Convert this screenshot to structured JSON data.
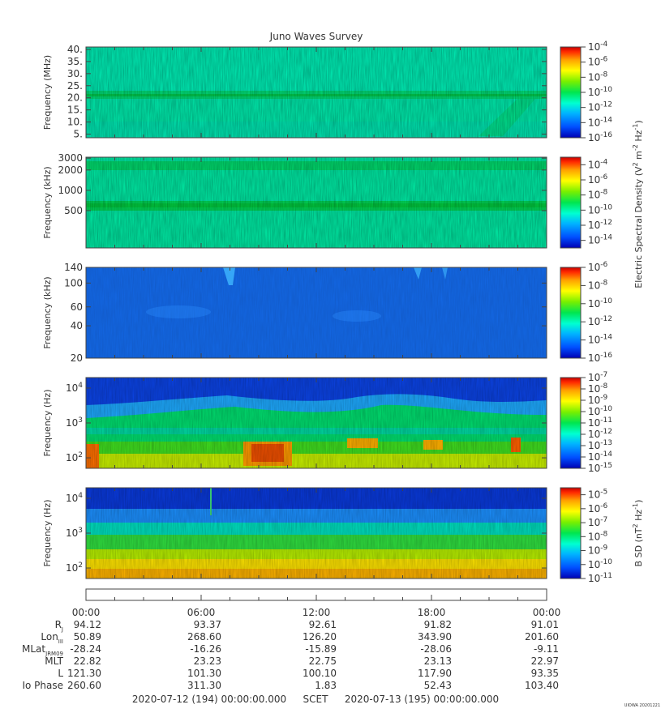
{
  "title": "Juno Waves Survey",
  "chart_data": [
    {
      "type": "heatmap",
      "ylabel": "Frequency (MHz)",
      "yticks": [
        "40.",
        "35.",
        "30.",
        "25.",
        "20.",
        "15.",
        "10.",
        "5."
      ],
      "ytick_values": [
        40,
        35,
        30,
        25,
        20,
        15,
        10,
        5
      ],
      "ylim": [
        3.5,
        41
      ],
      "yscale": "linear",
      "colorbar": {
        "min_exp": -16,
        "max_exp": -4,
        "tick_exps": [
          -4,
          -6,
          -8,
          -10,
          -12,
          -14,
          -16
        ]
      },
      "features": [
        {
          "kind": "band",
          "center": 21,
          "level": -11
        }
      ]
    },
    {
      "type": "heatmap",
      "ylabel": "Frequency (kHz)",
      "yticks": [
        "3000",
        "2000",
        "1000",
        "500"
      ],
      "ytick_values": [
        3000,
        2000,
        1000,
        500
      ],
      "ylim": [
        140,
        3100
      ],
      "yscale": "log",
      "colorbar": {
        "min_exp": -15,
        "max_exp": -3,
        "tick_exps": [
          -4,
          -6,
          -8,
          -10,
          -12,
          -14
        ]
      },
      "features": [
        {
          "kind": "band",
          "center": 2200,
          "level": -11
        },
        {
          "kind": "band",
          "center": 560,
          "level": -10
        }
      ]
    },
    {
      "type": "heatmap",
      "ylabel": "Frequency (kHz)",
      "yticks": [
        "140",
        "100",
        "60",
        "40",
        "20"
      ],
      "ytick_values": [
        140,
        100,
        60,
        40,
        20
      ],
      "ylim": [
        20,
        140
      ],
      "yscale": "log",
      "colorbar": {
        "min_exp": -16,
        "max_exp": -6,
        "tick_exps": [
          -6,
          -8,
          -10,
          -12,
          -14,
          -16
        ]
      }
    },
    {
      "type": "heatmap",
      "ylabel": "Frequency (Hz)",
      "yticks": [
        "10^4",
        "10^3",
        "10^2"
      ],
      "ytick_values": [
        10000,
        1000,
        100
      ],
      "ylim": [
        50,
        20000
      ],
      "yscale": "log",
      "colorbar": {
        "min_exp": -15,
        "max_exp": -7,
        "tick_exps": [
          -7,
          -8,
          -9,
          -10,
          -11,
          -12,
          -13,
          -14,
          -15
        ]
      }
    },
    {
      "type": "heatmap",
      "ylabel": "Frequency (Hz)",
      "yticks": [
        "10^4",
        "10^3",
        "10^2"
      ],
      "ytick_values": [
        10000,
        1000,
        100
      ],
      "ylim": [
        50,
        20000
      ],
      "yscale": "log",
      "colorbar": {
        "min_exp": -11,
        "max_exp": -4.5,
        "tick_exps": [
          -5,
          -6,
          -7,
          -8,
          -9,
          -10,
          -11
        ]
      }
    }
  ],
  "colorbar_label_electric": "Electric Spectral Density (V^2 m^-2 Hz^-1)",
  "colorbar_label_magnetic": "B SD (nT^2 Hz^-1)",
  "time_ticks": [
    "00:00",
    "06:00",
    "12:00",
    "18:00",
    "00:00"
  ],
  "ephemeris": {
    "labels": [
      "R",
      "Lon",
      "MLat",
      "MLT",
      "L",
      "Io Phase"
    ],
    "rows": [
      [
        "94.12",
        "93.37",
        "92.61",
        "91.82",
        "91.01"
      ],
      [
        "50.89",
        "268.60",
        "126.20",
        "343.90",
        "201.60"
      ],
      [
        "-28.24",
        "-16.26",
        "-15.89",
        "-28.06",
        "-9.11"
      ],
      [
        "22.82",
        "23.23",
        "22.75",
        "23.13",
        "22.97"
      ],
      [
        "121.30",
        "101.30",
        "100.10",
        "117.90",
        "93.35"
      ],
      [
        "260.60",
        "311.30",
        "1.83",
        "52.43",
        "103.40"
      ]
    ]
  },
  "footer": {
    "start": "2020-07-12 (194) 00:00:00.000",
    "scet": "SCET",
    "end": "2020-07-13 (195) 00:00:00.000",
    "credit": "UIOWA 20201221"
  },
  "colormap": [
    "#0000b4",
    "#0050ff",
    "#00b4ff",
    "#00ffd2",
    "#00e650",
    "#78f000",
    "#ffff00",
    "#ffa000",
    "#ff2800",
    "#c80000"
  ]
}
